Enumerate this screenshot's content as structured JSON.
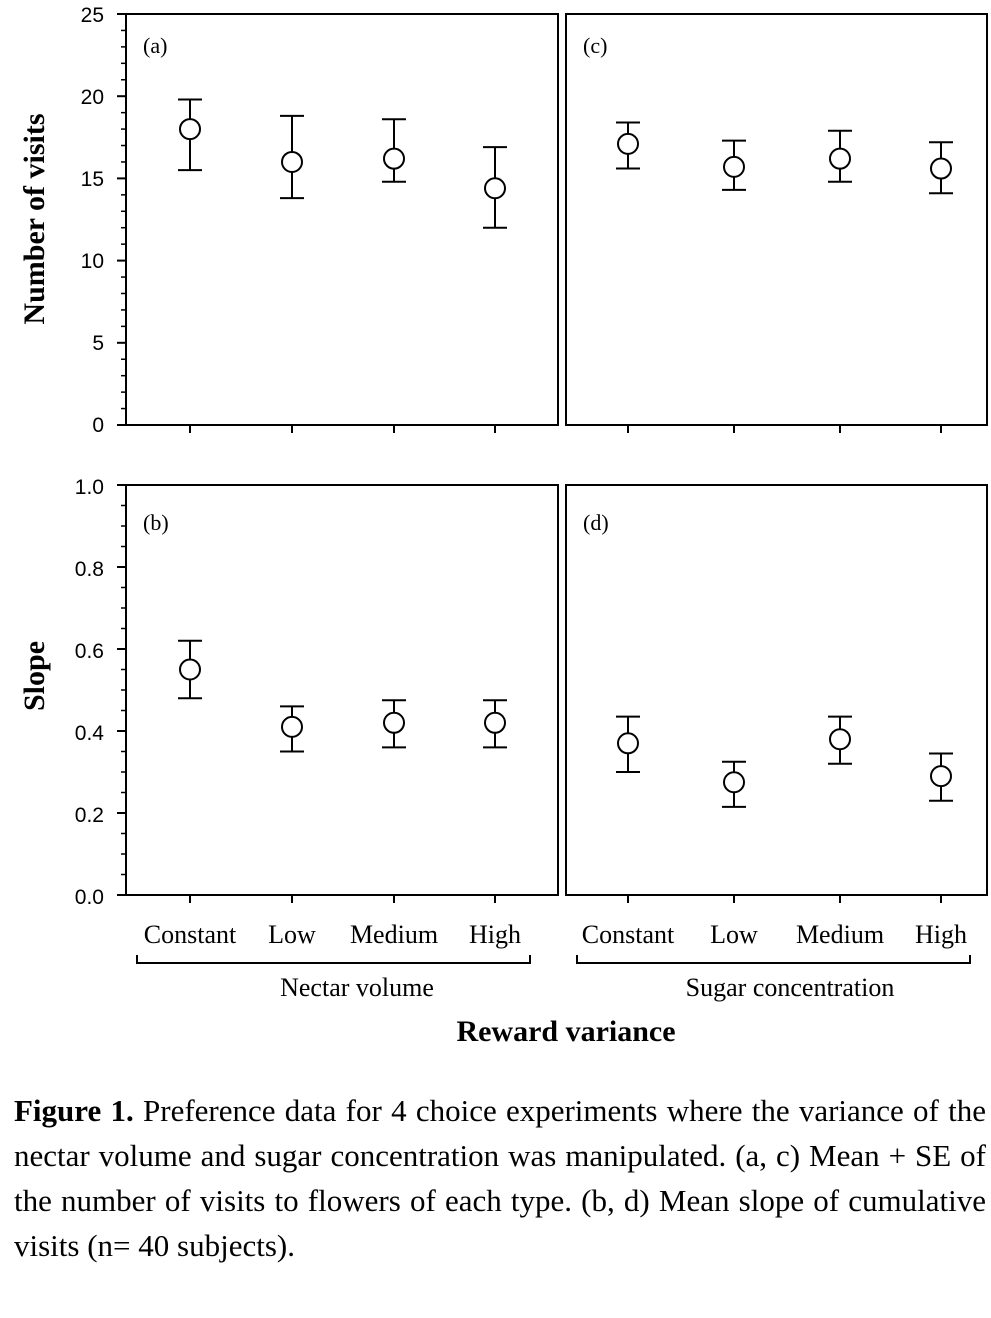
{
  "chart_data": [
    {
      "panel": "(a)",
      "type": "scatter",
      "group": "Nectar volume",
      "categories": [
        "Constant",
        "Low",
        "Medium",
        "High"
      ],
      "ylabel": "Number of visits",
      "ylim": [
        0,
        25
      ],
      "yticks": [
        "0",
        "5",
        "10",
        "15",
        "20",
        "25"
      ],
      "means": [
        18.0,
        16.0,
        16.2,
        14.4
      ],
      "upper": [
        19.8,
        18.8,
        18.6,
        16.9
      ],
      "lower": [
        15.5,
        13.8,
        14.8,
        12.0
      ]
    },
    {
      "panel": "(c)",
      "type": "scatter",
      "group": "Sugar concentration",
      "categories": [
        "Constant",
        "Low",
        "Medium",
        "High"
      ],
      "ylim": [
        0,
        25
      ],
      "means": [
        17.1,
        15.7,
        16.2,
        15.6
      ],
      "upper": [
        18.4,
        17.3,
        17.9,
        17.2
      ],
      "lower": [
        15.6,
        14.3,
        14.8,
        14.1
      ]
    },
    {
      "panel": "(b)",
      "type": "scatter",
      "group": "Nectar volume",
      "categories": [
        "Constant",
        "Low",
        "Medium",
        "High"
      ],
      "ylabel": "Slope",
      "ylim": [
        0,
        1.0
      ],
      "yticks": [
        "0.0",
        "0.2",
        "0.4",
        "0.6",
        "0.8",
        "1.0"
      ],
      "means": [
        0.55,
        0.41,
        0.42,
        0.42
      ],
      "upper": [
        0.62,
        0.46,
        0.475,
        0.475
      ],
      "lower": [
        0.48,
        0.35,
        0.36,
        0.36
      ]
    },
    {
      "panel": "(d)",
      "type": "scatter",
      "group": "Sugar concentration",
      "categories": [
        "Constant",
        "Low",
        "Medium",
        "High"
      ],
      "ylim": [
        0,
        1.0
      ],
      "means": [
        0.37,
        0.275,
        0.38,
        0.29
      ],
      "upper": [
        0.435,
        0.325,
        0.435,
        0.345
      ],
      "lower": [
        0.3,
        0.215,
        0.32,
        0.23
      ]
    }
  ],
  "xlabel": "Reward variance",
  "caption": {
    "bold": "Figure 1.",
    "text": " Preference data for 4 choice experiments where the variance of the nectar volume and sugar concentration was manipulated. (a, c) Mean + SE of the number of visits to flowers of each type. (b, d) Mean slope of cumulative visits (n= 40 subjects)."
  }
}
